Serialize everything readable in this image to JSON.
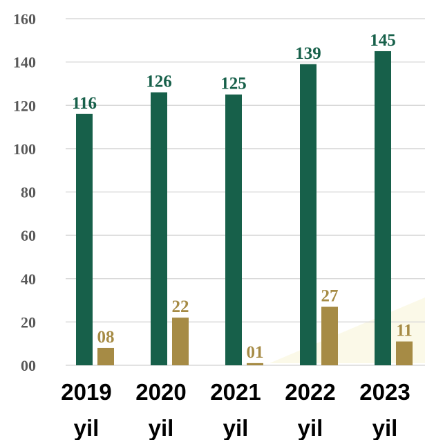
{
  "chart_data": {
    "type": "bar",
    "categories": [
      [
        "2019",
        "yil"
      ],
      [
        "2020",
        "yil"
      ],
      [
        "2021",
        "yil"
      ],
      [
        "2022",
        "yil"
      ],
      [
        "2023",
        "yil"
      ]
    ],
    "series": [
      {
        "values": [
          116,
          126,
          125,
          139,
          145
        ],
        "labels": [
          "116",
          "126",
          "125",
          "139",
          "145"
        ],
        "color": "#17604a"
      },
      {
        "values": [
          8,
          22,
          1,
          27,
          11
        ],
        "labels": [
          "08",
          "22",
          "01",
          "27",
          "11"
        ],
        "color": "#a68b45"
      }
    ],
    "ylim": [
      0,
      160
    ],
    "yticks": [
      "00",
      "20",
      "40",
      "60",
      "80",
      "100",
      "120",
      "140",
      "160"
    ],
    "grid": true,
    "title": "",
    "xlabel": "",
    "ylabel": ""
  }
}
